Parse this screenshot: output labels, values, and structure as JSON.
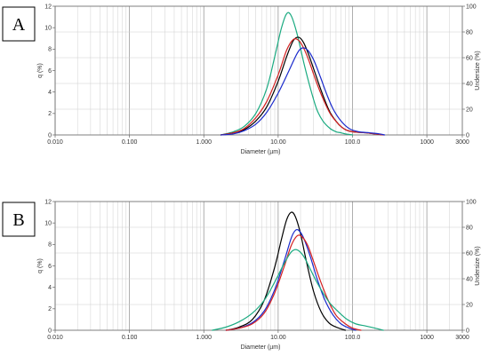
{
  "chart_data": [
    {
      "type": "line",
      "panel_label": "A",
      "xlabel": "Diameter (µm)",
      "ylabel": "q (%)",
      "y2label": "Undersize (%)",
      "xscale": "log",
      "xlim": [
        0.01,
        3000
      ],
      "ylim": [
        0,
        12
      ],
      "y2lim": [
        0,
        100
      ],
      "grid": true,
      "x_ticks": [
        {
          "v": 0.01,
          "label": "0.010"
        },
        {
          "v": 0.1,
          "label": "0.100"
        },
        {
          "v": 1,
          "label": "1.000"
        },
        {
          "v": 10,
          "label": "10.00"
        },
        {
          "v": 100,
          "label": "100.0"
        },
        {
          "v": 1000,
          "label": "1000"
        },
        {
          "v": 3000,
          "label": "3000"
        }
      ],
      "y_ticks": [
        0,
        2,
        4,
        6,
        8,
        10,
        12
      ],
      "y2_ticks": [
        0,
        20,
        40,
        60,
        80,
        100
      ],
      "series": [
        {
          "color": "#1aaa80",
          "x": [
            1.7,
            2.5,
            3.5,
            5,
            7,
            9,
            11,
            13,
            15,
            18,
            22,
            27,
            33,
            40,
            50,
            60,
            70,
            80,
            100
          ],
          "y": [
            0,
            0.3,
            0.8,
            2,
            4.3,
            7.3,
            9.9,
            11.3,
            11.1,
            9.4,
            6.8,
            4.4,
            2.4,
            1.3,
            0.6,
            0.3,
            0.2,
            0.1,
            0
          ]
        },
        {
          "color": "#000000",
          "x": [
            1.7,
            2.5,
            3.5,
            5,
            7,
            10,
            13,
            16,
            19,
            22,
            26,
            32,
            40,
            50,
            65,
            80,
            100,
            150,
            200,
            260
          ],
          "y": [
            0,
            0.2,
            0.5,
            1.3,
            2.6,
            5,
            7.3,
            8.8,
            9.1,
            8.6,
            7.4,
            5.6,
            3.7,
            2.1,
            1,
            0.5,
            0.3,
            0.2,
            0.1,
            0
          ]
        },
        {
          "color": "#d42020",
          "x": [
            1.7,
            2.5,
            3.5,
            5,
            7,
            10,
            13,
            16,
            19,
            22,
            26,
            32,
            40,
            50,
            65,
            80,
            100,
            150,
            200,
            260
          ],
          "y": [
            0,
            0.2,
            0.6,
            1.6,
            3.1,
            5.6,
            7.9,
            8.9,
            8.8,
            8.1,
            6.9,
            5.1,
            3.4,
            2,
            1,
            0.5,
            0.3,
            0.2,
            0.1,
            0
          ]
        },
        {
          "color": "#1a2acc",
          "x": [
            1.7,
            2.5,
            3.5,
            5,
            7,
            10,
            14,
            18,
            21,
            25,
            30,
            37,
            45,
            55,
            70,
            90,
            120,
            170,
            230,
            270
          ],
          "y": [
            0,
            0.1,
            0.4,
            1,
            2.1,
            3.9,
            6,
            7.6,
            8.1,
            7.9,
            7,
            5.4,
            3.8,
            2.4,
            1.3,
            0.6,
            0.3,
            0.2,
            0.1,
            0
          ]
        }
      ]
    },
    {
      "type": "line",
      "panel_label": "B",
      "xlabel": "Diameter (µm)",
      "ylabel": "q (%)",
      "y2label": "Undersize (%)",
      "xscale": "log",
      "xlim": [
        0.01,
        3000
      ],
      "ylim": [
        0,
        12
      ],
      "y2lim": [
        0,
        100
      ],
      "grid": true,
      "x_ticks": [
        {
          "v": 0.01,
          "label": "0.010"
        },
        {
          "v": 0.1,
          "label": "0.100"
        },
        {
          "v": 1,
          "label": "1.000"
        },
        {
          "v": 10,
          "label": "10.00"
        },
        {
          "v": 100,
          "label": "100.0"
        },
        {
          "v": 1000,
          "label": "1000"
        },
        {
          "v": 3000,
          "label": "3000"
        }
      ],
      "y_ticks": [
        0,
        2,
        4,
        6,
        8,
        10,
        12
      ],
      "y2_ticks": [
        0,
        20,
        40,
        60,
        80,
        100
      ],
      "series": [
        {
          "color": "#000000",
          "x": [
            2,
            3,
            4.5,
            6.5,
            9,
            11,
            13,
            15,
            17,
            20,
            24,
            30,
            38,
            48,
            60,
            80
          ],
          "y": [
            0,
            0.3,
            1,
            2.8,
            5.9,
            8.4,
            10.3,
            11,
            10.6,
            9,
            6.4,
            3.6,
            1.7,
            0.7,
            0.3,
            0
          ]
        },
        {
          "color": "#1a2acc",
          "x": [
            2,
            3,
            4.5,
            6.5,
            9,
            12,
            15,
            17,
            19,
            22,
            27,
            33,
            42,
            55,
            70,
            90,
            110
          ],
          "y": [
            0,
            0.2,
            0.7,
            1.8,
            3.8,
            6.4,
            8.6,
            9.3,
            9.3,
            8.6,
            6.9,
            4.9,
            2.9,
            1.4,
            0.6,
            0.2,
            0
          ]
        },
        {
          "color": "#d42020",
          "x": [
            2,
            3,
            4.5,
            6.5,
            9,
            12,
            15,
            18,
            21,
            25,
            30,
            37,
            47,
            60,
            80,
            100,
            130
          ],
          "y": [
            0,
            0.2,
            0.6,
            1.6,
            3.5,
            5.9,
            7.9,
            8.8,
            8.7,
            7.9,
            6.4,
            4.6,
            2.8,
            1.4,
            0.6,
            0.2,
            0
          ]
        },
        {
          "color": "#1aaa80",
          "x": [
            1.3,
            2,
            3,
            4.5,
            6.5,
            9,
            12,
            15,
            18,
            22,
            27,
            33,
            40,
            50,
            65,
            85,
            110,
            150,
            200,
            260
          ],
          "y": [
            0,
            0.3,
            0.8,
            1.6,
            2.8,
            4.5,
            6.2,
            7.3,
            7.5,
            6.9,
            5.7,
            4.5,
            3.5,
            2.5,
            1.7,
            1,
            0.6,
            0.4,
            0.2,
            0
          ]
        }
      ]
    }
  ]
}
